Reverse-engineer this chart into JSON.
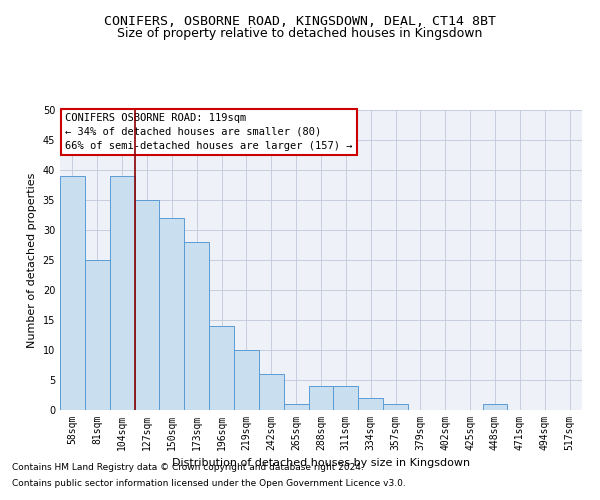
{
  "title": "CONIFERS, OSBORNE ROAD, KINGSDOWN, DEAL, CT14 8BT",
  "subtitle": "Size of property relative to detached houses in Kingsdown",
  "xlabel": "Distribution of detached houses by size in Kingsdown",
  "ylabel": "Number of detached properties",
  "categories": [
    "58sqm",
    "81sqm",
    "104sqm",
    "127sqm",
    "150sqm",
    "173sqm",
    "196sqm",
    "219sqm",
    "242sqm",
    "265sqm",
    "288sqm",
    "311sqm",
    "334sqm",
    "357sqm",
    "379sqm",
    "402sqm",
    "425sqm",
    "448sqm",
    "471sqm",
    "494sqm",
    "517sqm"
  ],
  "values": [
    39,
    25,
    39,
    35,
    32,
    28,
    14,
    10,
    6,
    1,
    4,
    4,
    2,
    1,
    0,
    0,
    0,
    1,
    0,
    0,
    0
  ],
  "bar_color": "#c9dff0",
  "bar_edge_color": "#5b9bd5",
  "marker_line_color": "#8b0000",
  "annotation_box_color": "#ffffff",
  "annotation_box_edge": "#cc0000",
  "marker_label": "CONIFERS OSBORNE ROAD: 119sqm",
  "marker_note1": "← 34% of detached houses are smaller (80)",
  "marker_note2": "66% of semi-detached houses are larger (157) →",
  "ylim": [
    0,
    50
  ],
  "yticks": [
    0,
    5,
    10,
    15,
    20,
    25,
    30,
    35,
    40,
    45,
    50
  ],
  "footer1": "Contains HM Land Registry data © Crown copyright and database right 2024.",
  "footer2": "Contains public sector information licensed under the Open Government Licence v3.0.",
  "title_fontsize": 9.5,
  "subtitle_fontsize": 9,
  "axis_label_fontsize": 8,
  "tick_fontsize": 7,
  "annotation_fontsize": 7.5,
  "footer_fontsize": 6.5,
  "bg_color": "#eef2f8"
}
